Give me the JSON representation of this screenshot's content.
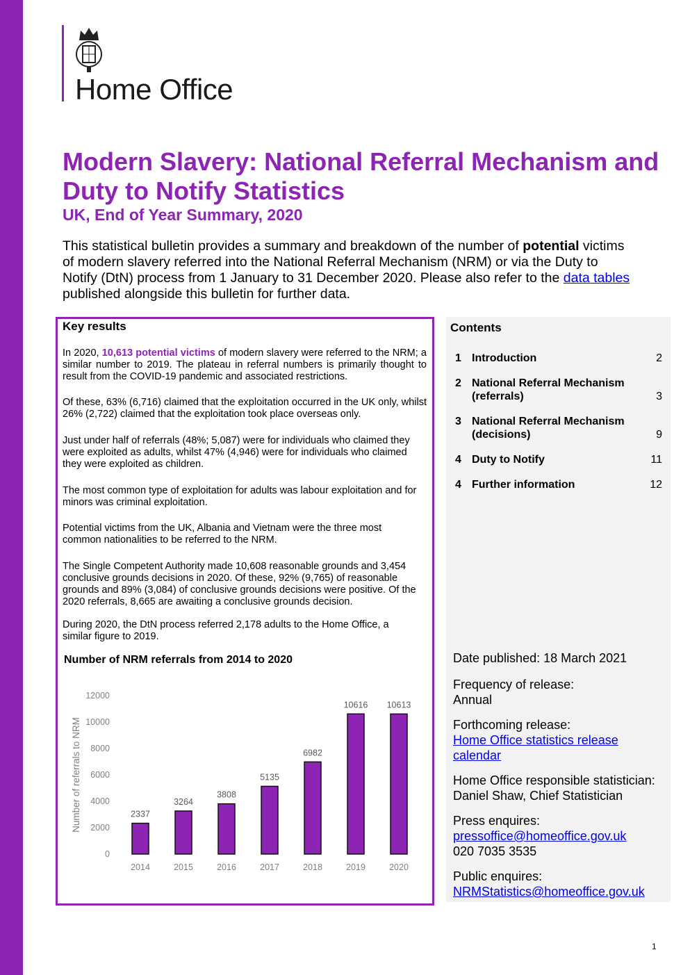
{
  "header": {
    "logo_text": "Home Office"
  },
  "title": "Modern Slavery: National Referral Mechanism and Duty to Notify Statistics",
  "subtitle": "UK, End of Year Summary, 2020",
  "intro": {
    "before_bold": "This statistical bulletin provides a summary and breakdown of the number of ",
    "bold": "potential",
    "after_bold": " victims of modern slavery referred into the National Referral Mechanism (NRM) or via the Duty to Notify (DtN) process from 1 January to 31 December 2020. Please also refer to the ",
    "link": "data tables",
    "end": " published alongside this bulletin for further data."
  },
  "key_results": {
    "title": "Key results",
    "p1_a": "In 2020, ",
    "p1_hl": "10,613 potential victims",
    "p1_b": " of modern slavery were referred to the NRM; a similar number to 2019. The plateau in referral numbers is primarily thought to result from the COVID-19 pandemic and associated restrictions.",
    "p2": "Of these, 63% (6,716) claimed that the exploitation occurred in the UK only, whilst 26% (2,722) claimed that the exploitation took place overseas only.",
    "p3": "Just under half of referrals (48%; 5,087) were for individuals who claimed they were exploited as adults, whilst 47% (4,946) were for individuals who claimed they were exploited as children.",
    "p4": "The most common type of exploitation for adults was labour exploitation and for minors was criminal exploitation.",
    "p5": "Potential victims from the UK, Albania and Vietnam were the three most common nationalities to be referred to the NRM.",
    "p6": "The Single Competent Authority made 10,608 reasonable grounds and 3,454 conclusive grounds decisions in 2020. Of these, 92% (9,765) of reasonable grounds and 89% (3,084) of conclusive grounds decisions were positive. Of the 2020 referrals, 8,665 are awaiting a conclusive grounds decision.",
    "p7": "During 2020, the DtN process referred 2,178 adults to the Home Office, a similar figure to 2019."
  },
  "chart_data": {
    "type": "bar",
    "title": "Number of NRM referrals from 2014 to 2020",
    "xlabel": "",
    "ylabel": "Number of referrals to NRM",
    "categories": [
      "2014",
      "2015",
      "2016",
      "2017",
      "2018",
      "2019",
      "2020"
    ],
    "values": [
      2337,
      3264,
      3808,
      5135,
      6982,
      10616,
      10613
    ],
    "ylim": [
      0,
      12000
    ],
    "yticks": [
      "0",
      "2000",
      "4000",
      "6000",
      "8000",
      "10000",
      "12000"
    ],
    "grid": false,
    "bar_color": "#8e24b4"
  },
  "contents": {
    "title": "Contents",
    "items": [
      {
        "num": "1",
        "label": "Introduction",
        "page": "2"
      },
      {
        "num": "2",
        "label": "National Referral Mechanism (referrals)",
        "page": "3"
      },
      {
        "num": "3",
        "label": "National Referral Mechanism (decisions)",
        "page": "9"
      },
      {
        "num": "4",
        "label": "Duty to Notify",
        "page": "11"
      },
      {
        "num": "4",
        "label": "Further information",
        "page": "12"
      }
    ]
  },
  "meta": {
    "date_published": "Date published: 18 March 2021",
    "frequency_label": "Frequency of release:",
    "frequency_value": "Annual",
    "forthcoming_label": "Forthcoming release:",
    "forthcoming_link": "Home Office statistics release calendar",
    "statistician_label": "Home Office responsible statistician:",
    "statistician_value": "Daniel Shaw, Chief Statistician",
    "press_label": "Press enquires:",
    "press_email": "pressoffice@homeoffice.gov.uk",
    "press_phone": "020 7035 3535",
    "public_label": "Public enquires:",
    "public_email": "NRMStatistics@homeoffice.gov.uk"
  },
  "page_number": "1",
  "colors": {
    "accent": "#8e24b4",
    "panel": "#f2f2f2"
  }
}
